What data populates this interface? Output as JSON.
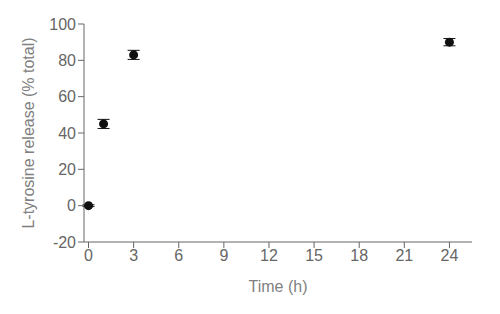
{
  "chart_data": {
    "type": "scatter",
    "xlabel": "Time (h)",
    "ylabel": "L-tyrosine release (% total)",
    "x": [
      0,
      1,
      3,
      24
    ],
    "values": [
      0,
      45,
      83,
      90
    ],
    "yerr": [
      0.5,
      2.5,
      2.5,
      2.0
    ],
    "color": "#111111",
    "marker": "circle",
    "xlim": [
      -0.3,
      25.5
    ],
    "ylim": [
      -20,
      100
    ],
    "xticks": [
      0,
      3,
      6,
      9,
      12,
      15,
      18,
      21,
      24
    ],
    "yticks": [
      -20,
      0,
      20,
      40,
      60,
      80,
      100
    ],
    "grid": false
  }
}
